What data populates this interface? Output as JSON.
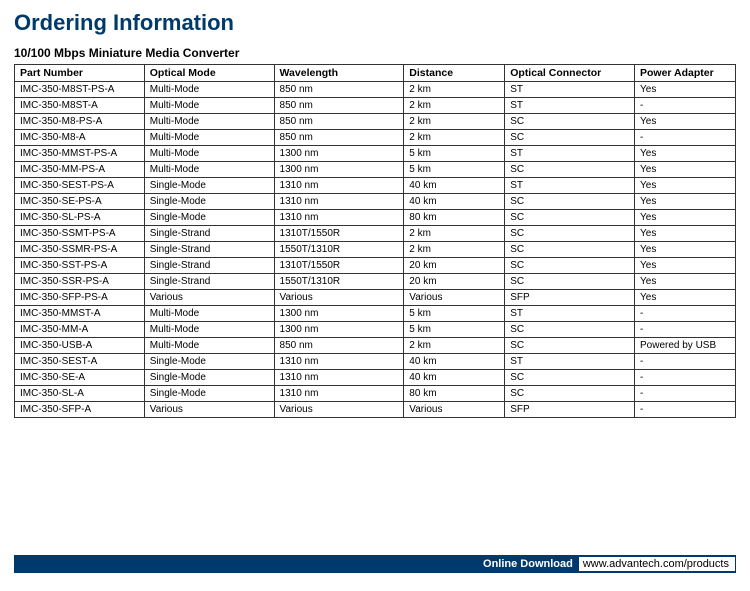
{
  "heading": {
    "text": "Ordering Information",
    "color": "#003a6c"
  },
  "subheading": "10/100 Mbps Miniature Media Converter",
  "table": {
    "columns": [
      "Part Number",
      "Optical Mode",
      "Wavelength",
      "Distance",
      "Optical Connector",
      "Power Adapter"
    ],
    "rows": [
      [
        "IMC-350-M8ST-PS-A",
        "Multi-Mode",
        "850 nm",
        "2 km",
        "ST",
        "Yes"
      ],
      [
        "IMC-350-M8ST-A",
        "Multi-Mode",
        "850 nm",
        "2 km",
        "ST",
        "-"
      ],
      [
        "IMC-350-M8-PS-A",
        "Multi-Mode",
        "850 nm",
        "2 km",
        "SC",
        "Yes"
      ],
      [
        "IMC-350-M8-A",
        "Multi-Mode",
        "850 nm",
        "2 km",
        "SC",
        "-"
      ],
      [
        "IMC-350-MMST-PS-A",
        "Multi-Mode",
        "1300 nm",
        "5 km",
        "ST",
        "Yes"
      ],
      [
        "IMC-350-MM-PS-A",
        "Multi-Mode",
        "1300 nm",
        "5 km",
        "SC",
        "Yes"
      ],
      [
        "IMC-350-SEST-PS-A",
        "Single-Mode",
        "1310 nm",
        "40 km",
        "ST",
        "Yes"
      ],
      [
        "IMC-350-SE-PS-A",
        "Single-Mode",
        "1310 nm",
        "40 km",
        "SC",
        "Yes"
      ],
      [
        "IMC-350-SL-PS-A",
        "Single-Mode",
        "1310 nm",
        "80 km",
        "SC",
        "Yes"
      ],
      [
        "IMC-350-SSMT-PS-A",
        "Single-Strand",
        "1310T/1550R",
        "2 km",
        "SC",
        "Yes"
      ],
      [
        "IMC-350-SSMR-PS-A",
        "Single-Strand",
        "1550T/1310R",
        "2 km",
        "SC",
        "Yes"
      ],
      [
        "IMC-350-SST-PS-A",
        "Single-Strand",
        "1310T/1550R",
        "20 km",
        "SC",
        "Yes"
      ],
      [
        "IMC-350-SSR-PS-A",
        "Single-Strand",
        "1550T/1310R",
        "20 km",
        "SC",
        "Yes"
      ],
      [
        "IMC-350-SFP-PS-A",
        "Various",
        "Various",
        "Various",
        "SFP",
        "Yes"
      ],
      [
        "IMC-350-MMST-A",
        "Multi-Mode",
        "1300 nm",
        "5 km",
        "ST",
        "-"
      ],
      [
        "IMC-350-MM-A",
        "Multi-Mode",
        "1300 nm",
        "5 km",
        "SC",
        "-"
      ],
      [
        "IMC-350-USB-A",
        "Multi-Mode",
        "850 nm",
        "2 km",
        "SC",
        "Powered by USB"
      ],
      [
        "IMC-350-SEST-A",
        "Single-Mode",
        "1310 nm",
        "40 km",
        "ST",
        "-"
      ],
      [
        "IMC-350-SE-A",
        "Single-Mode",
        "1310 nm",
        "40 km",
        "SC",
        "-"
      ],
      [
        "IMC-350-SL-A",
        "Single-Mode",
        "1310 nm",
        "80 km",
        "SC",
        "-"
      ],
      [
        "IMC-350-SFP-A",
        "Various",
        "Various",
        "Various",
        "SFP",
        "-"
      ]
    ]
  },
  "footer": {
    "label": "Online Download",
    "url": "www.advantech.com/products",
    "bar_color": "#003a6c"
  }
}
